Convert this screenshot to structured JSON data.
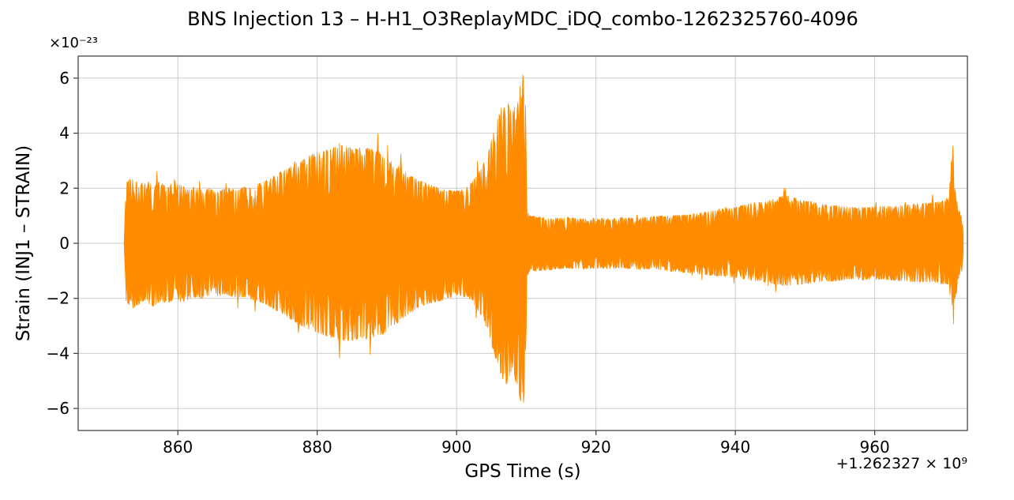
{
  "chart_data": {
    "type": "area",
    "title": "BNS Injection 13 – H-H1_O3ReplayMDC_iDQ_combo-1262325760-4096",
    "xlabel": "GPS Time (s)",
    "ylabel": "Strain (INJ1 – STRAIN)",
    "y_offset_label": "×10⁻²³",
    "x_offset_label": "+1.262327 × 10⁹",
    "xlim": [
      845.7,
      973.3
    ],
    "ylim": [
      -6.8,
      6.8
    ],
    "xticks": [
      860,
      880,
      900,
      920,
      940,
      960
    ],
    "yticks": [
      -6,
      -4,
      -2,
      0,
      2,
      4,
      6
    ],
    "grid": true,
    "legend": "none",
    "colors": {
      "line": "#ff8c00",
      "grid": "#cccccc",
      "spine": "#3a3a3a",
      "background": "#ffffff",
      "text": "#000000"
    },
    "envelope": {
      "comment_units": "x = GPS seconds relative to +1.262327e9 offset; y = strain in units of 1e-23",
      "x": [
        852.3,
        852.6,
        853.5,
        854.5,
        855.5,
        856.5,
        857.5,
        858.5,
        859.5,
        860.5,
        861.5,
        862.5,
        863.5,
        864.5,
        865.5,
        866.5,
        867.5,
        868.5,
        869.5,
        870.5,
        871.5,
        872.5,
        873.5,
        874.5,
        875.5,
        876.5,
        877.5,
        878.5,
        879.5,
        880.5,
        881.5,
        882.5,
        883.5,
        884.5,
        885.5,
        886.5,
        887.5,
        888.5,
        889.5,
        890.5,
        891.5,
        892.5,
        893.5,
        894.5,
        895.5,
        896.5,
        897.5,
        898.5,
        899.5,
        900.5,
        901.5,
        902.5,
        903.5,
        904.5,
        905.5,
        906.5,
        907.2,
        908.0,
        908.8,
        909.5,
        909.9,
        910.1,
        910.5,
        912,
        914,
        916,
        918,
        920,
        922,
        924,
        926,
        928,
        930,
        932,
        934,
        936,
        938,
        940,
        942,
        944,
        946,
        947.5,
        949,
        951,
        953,
        955,
        957,
        959,
        961,
        963,
        965,
        967,
        969,
        970.5,
        970.9,
        971.15,
        971.5,
        972.0,
        972.5,
        972.8
      ],
      "upper": [
        0.05,
        2.3,
        2.35,
        2.15,
        2.3,
        2.1,
        2.25,
        2.0,
        2.3,
        2.1,
        1.95,
        2.05,
        1.9,
        2.0,
        1.85,
        1.95,
        2.0,
        1.9,
        2.05,
        2.0,
        2.15,
        2.25,
        2.4,
        2.55,
        2.7,
        2.85,
        3.0,
        3.15,
        3.25,
        3.35,
        3.4,
        3.5,
        3.55,
        3.5,
        3.45,
        3.5,
        3.45,
        3.35,
        3.2,
        3.05,
        2.85,
        2.65,
        2.45,
        2.3,
        2.2,
        2.1,
        2.0,
        1.95,
        1.9,
        1.9,
        2.05,
        2.3,
        2.7,
        3.3,
        4.2,
        5.0,
        5.2,
        4.7,
        5.4,
        6.15,
        5.0,
        1.2,
        1.0,
        0.95,
        0.9,
        0.95,
        0.88,
        0.92,
        0.88,
        0.95,
        0.9,
        0.98,
        1.0,
        1.02,
        1.05,
        1.15,
        1.25,
        1.3,
        1.45,
        1.5,
        1.65,
        1.75,
        1.6,
        1.5,
        1.4,
        1.35,
        1.3,
        1.3,
        1.35,
        1.35,
        1.4,
        1.45,
        1.5,
        1.6,
        2.4,
        4.2,
        2.0,
        1.2,
        1.05,
        0.1
      ],
      "lower": [
        -0.05,
        -2.1,
        -2.4,
        -2.2,
        -2.15,
        -2.3,
        -2.1,
        -2.2,
        -2.0,
        -2.15,
        -2.05,
        -1.95,
        -2.0,
        -1.9,
        -1.95,
        -1.85,
        -1.9,
        -2.0,
        -1.95,
        -2.05,
        -2.1,
        -2.2,
        -2.35,
        -2.5,
        -2.65,
        -2.8,
        -2.95,
        -3.1,
        -3.2,
        -3.3,
        -3.4,
        -3.45,
        -3.5,
        -3.55,
        -3.5,
        -3.45,
        -3.5,
        -3.4,
        -3.3,
        -3.1,
        -2.9,
        -2.7,
        -2.5,
        -2.35,
        -2.25,
        -2.15,
        -2.1,
        -2.0,
        -1.95,
        -1.9,
        -2.0,
        -2.25,
        -2.6,
        -3.2,
        -4.1,
        -4.9,
        -5.1,
        -4.6,
        -5.3,
        -6.05,
        -5.0,
        -1.2,
        -1.0,
        -1.0,
        -0.95,
        -0.9,
        -0.95,
        -0.9,
        -0.92,
        -0.9,
        -0.95,
        -0.92,
        -1.0,
        -1.05,
        -1.1,
        -1.15,
        -1.2,
        -1.25,
        -1.35,
        -1.4,
        -1.5,
        -1.55,
        -1.5,
        -1.45,
        -1.4,
        -1.35,
        -1.3,
        -1.35,
        -1.3,
        -1.35,
        -1.4,
        -1.4,
        -1.45,
        -1.5,
        -2.1,
        -3.5,
        -2.2,
        -1.3,
        -1.0,
        -0.1
      ]
    }
  }
}
